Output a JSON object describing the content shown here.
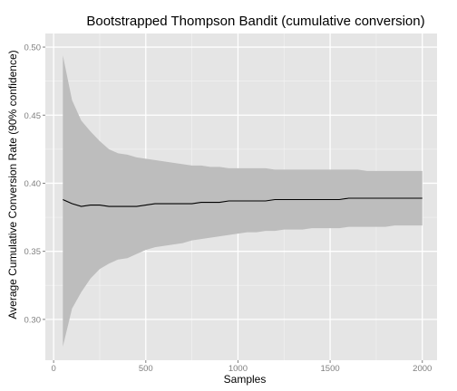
{
  "chart_data": {
    "type": "line",
    "title": "Bootstrapped Thompson Bandit (cumulative conversion)",
    "xlabel": "Samples",
    "ylabel": "Average Cumulative Conversion Rate (90% confidence)",
    "xlim": [
      -45,
      2080
    ],
    "ylim": [
      0.27,
      0.51
    ],
    "xticks": [
      0,
      500,
      1000,
      1500,
      2000
    ],
    "xtick_labels": [
      "0",
      "500",
      "1000",
      "1500",
      "2000"
    ],
    "yticks": [
      0.3,
      0.35,
      0.4,
      0.45,
      0.5
    ],
    "ytick_labels": [
      "0.30",
      "0.35",
      "0.40",
      "0.45",
      "0.50"
    ],
    "grid": true,
    "legend": "none",
    "colors": {
      "panel": "#e5e5e5",
      "grid_major": "#ffffff",
      "grid_minor": "#f2f2f2",
      "ribbon": "#bdbdbd",
      "line": "#000000",
      "tick": "#7f7f7f"
    },
    "series": [
      {
        "x": [
          50,
          100,
          150,
          200,
          250,
          300,
          350,
          400,
          450,
          500,
          550,
          600,
          650,
          700,
          750,
          800,
          850,
          900,
          950,
          1000,
          1050,
          1100,
          1150,
          1200,
          1250,
          1300,
          1350,
          1400,
          1450,
          1500,
          1550,
          1600,
          1650,
          1700,
          1750,
          1800,
          1850,
          1900,
          1950,
          2000
        ],
        "mean": [
          0.388,
          0.385,
          0.383,
          0.384,
          0.384,
          0.383,
          0.383,
          0.383,
          0.383,
          0.384,
          0.385,
          0.385,
          0.385,
          0.385,
          0.385,
          0.386,
          0.386,
          0.386,
          0.387,
          0.387,
          0.387,
          0.387,
          0.387,
          0.388,
          0.388,
          0.388,
          0.388,
          0.388,
          0.388,
          0.388,
          0.388,
          0.389,
          0.389,
          0.389,
          0.389,
          0.389,
          0.389,
          0.389,
          0.389,
          0.389
        ],
        "lower": [
          0.28,
          0.308,
          0.32,
          0.33,
          0.337,
          0.341,
          0.344,
          0.345,
          0.348,
          0.351,
          0.353,
          0.354,
          0.355,
          0.356,
          0.358,
          0.359,
          0.36,
          0.361,
          0.362,
          0.363,
          0.364,
          0.364,
          0.365,
          0.365,
          0.366,
          0.366,
          0.366,
          0.367,
          0.367,
          0.367,
          0.367,
          0.368,
          0.368,
          0.368,
          0.368,
          0.368,
          0.369,
          0.369,
          0.369,
          0.369
        ],
        "upper": [
          0.494,
          0.461,
          0.446,
          0.438,
          0.431,
          0.425,
          0.422,
          0.421,
          0.419,
          0.418,
          0.417,
          0.416,
          0.415,
          0.414,
          0.413,
          0.413,
          0.412,
          0.412,
          0.411,
          0.411,
          0.411,
          0.411,
          0.411,
          0.41,
          0.41,
          0.41,
          0.41,
          0.41,
          0.41,
          0.41,
          0.41,
          0.41,
          0.41,
          0.409,
          0.409,
          0.409,
          0.409,
          0.409,
          0.409,
          0.409
        ]
      }
    ]
  }
}
